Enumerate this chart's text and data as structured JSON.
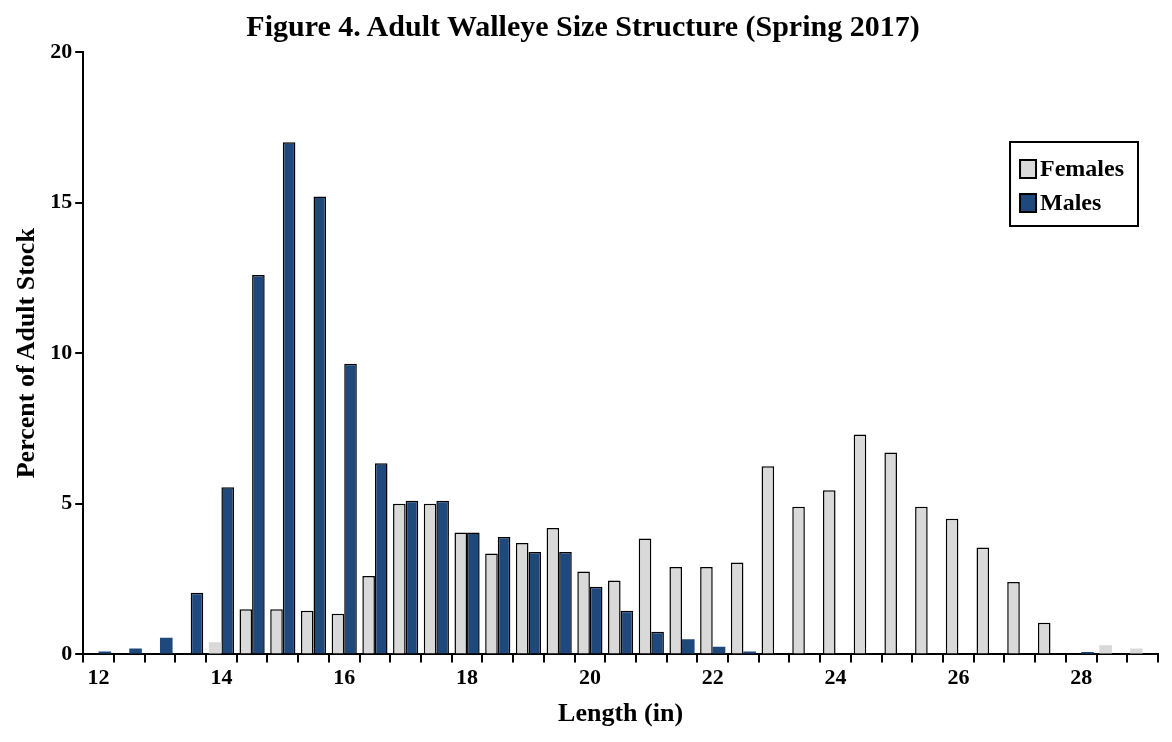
{
  "chart_data": {
    "type": "bar",
    "title": "Figure 4. Adult Walleye Size Structure (Spring 2017)",
    "xlabel": "Length (in)",
    "ylabel": "Percent of Adult Stock",
    "categories": [
      "12",
      null,
      null,
      null,
      "14",
      null,
      null,
      null,
      "16",
      null,
      null,
      null,
      "18",
      null,
      null,
      null,
      "20",
      null,
      null,
      null,
      "22",
      null,
      null,
      null,
      "24",
      null,
      null,
      null,
      "26",
      null,
      null,
      null,
      "28",
      null,
      null
    ],
    "series": [
      {
        "name": "Females",
        "color": "#d9d9d9",
        "values": [
          0,
          0,
          0,
          0,
          0.4,
          1.5,
          1.5,
          1.45,
          1.35,
          2.6,
          5,
          5,
          4.05,
          3.35,
          3.7,
          4.2,
          2.75,
          2.45,
          3.85,
          2.9,
          2.9,
          3.05,
          6.25,
          4.9,
          5.45,
          7.3,
          6.7,
          4.9,
          4.5,
          3.55,
          2.4,
          1.05,
          0,
          0.3,
          0.2
        ]
      },
      {
        "name": "Males",
        "color": "#1f497d",
        "values": [
          0.1,
          0.2,
          0.55,
          2.05,
          5.55,
          12.6,
          17,
          15.2,
          9.65,
          6.35,
          5.1,
          5.1,
          4.05,
          3.9,
          3.4,
          3.4,
          2.25,
          1.45,
          0.75,
          0.5,
          0.25,
          0.1,
          0,
          0,
          0,
          0,
          0,
          0,
          0,
          0,
          0,
          0,
          0.08,
          0,
          0
        ]
      }
    ],
    "ylim": [
      0,
      20
    ],
    "yticks": [
      0,
      5,
      10,
      15,
      20
    ],
    "grid": false,
    "legend": "top right"
  }
}
